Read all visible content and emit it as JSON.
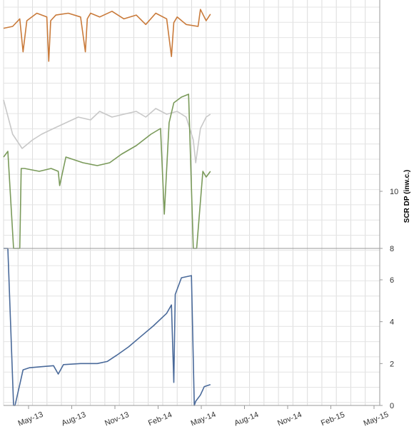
{
  "chart_data": {
    "type": "line",
    "title": "",
    "xlabel": "",
    "x_ticks": [
      "May-13",
      "Aug-13",
      "Nov-13",
      "Feb-14",
      "May-14",
      "Aug-14",
      "Nov-14",
      "Feb-15",
      "May-15"
    ],
    "x_range": [
      "2013-04",
      "2015-06"
    ],
    "grid": true,
    "legend": "none",
    "panels": [
      {
        "name": "top",
        "y_ticks": [],
        "series": [
          {
            "color": "#c97a3a",
            "x": [
              "2013-04-01",
              "2013-04-20",
              "2013-05-05",
              "2013-05-12",
              "2013-05-20",
              "2013-06-10",
              "2013-07-01",
              "2013-07-05",
              "2013-07-09",
              "2013-07-20",
              "2013-08-15",
              "2013-09-10",
              "2013-09-20",
              "2013-09-24",
              "2013-10-01",
              "2013-10-20",
              "2013-11-15",
              "2013-12-10",
              "2014-01-05",
              "2014-01-25",
              "2014-02-15",
              "2014-03-10",
              "2014-03-20",
              "2014-03-25",
              "2014-04-01",
              "2014-04-20",
              "2014-05-15",
              "2014-05-20",
              "2014-06-01",
              "2014-06-10"
            ],
            "values": [
              0.7,
              0.72,
              0.8,
              0.45,
              0.78,
              0.86,
              0.82,
              0.35,
              0.78,
              0.84,
              0.86,
              0.82,
              0.45,
              0.8,
              0.86,
              0.82,
              0.88,
              0.8,
              0.84,
              0.74,
              0.86,
              0.8,
              0.4,
              0.76,
              0.82,
              0.74,
              0.72,
              0.9,
              0.78,
              0.85
            ]
          }
        ]
      },
      {
        "name": "middle",
        "ylabel": "SCR DP (inw.c.)",
        "y_ticks": [
          "8",
          "10"
        ],
        "ylim": [
          8,
          13.4
        ],
        "series": [
          {
            "color": "#c8c8c8",
            "x": [
              "2013-04-01",
              "2013-04-20",
              "2013-05-10",
              "2013-06-01",
              "2013-06-20",
              "2013-07-15",
              "2013-08-10",
              "2013-09-05",
              "2013-10-01",
              "2013-10-20",
              "2013-11-15",
              "2013-12-10",
              "2014-01-05",
              "2014-01-25",
              "2014-02-15",
              "2014-03-10",
              "2014-04-01",
              "2014-04-20",
              "2014-05-05",
              "2014-05-10",
              "2014-05-20",
              "2014-06-01",
              "2014-06-10"
            ],
            "values": [
              13.2,
              12.0,
              11.5,
              11.8,
              12.0,
              12.2,
              12.4,
              12.6,
              12.5,
              12.8,
              12.6,
              12.7,
              12.8,
              12.6,
              12.9,
              12.7,
              12.8,
              12.6,
              11.8,
              11.0,
              12.2,
              12.6,
              12.7
            ]
          },
          {
            "color": "#7a9a5a",
            "x": [
              "2013-04-01",
              "2013-04-10",
              "2013-04-22",
              "2013-05-05",
              "2013-05-08",
              "2013-05-15",
              "2013-06-15",
              "2013-07-10",
              "2013-07-25",
              "2013-07-28",
              "2013-08-10",
              "2013-09-15",
              "2013-10-15",
              "2013-11-10",
              "2013-12-05",
              "2014-01-05",
              "2014-02-05",
              "2014-02-25",
              "2014-03-05",
              "2014-03-15",
              "2014-03-25",
              "2014-04-10",
              "2014-04-25",
              "2014-05-05",
              "2014-05-12",
              "2014-05-25",
              "2014-06-01",
              "2014-06-10"
            ],
            "values": [
              11.2,
              11.4,
              8.0,
              8.0,
              10.8,
              10.8,
              10.7,
              10.8,
              10.7,
              10.2,
              11.2,
              11.0,
              10.9,
              11.0,
              11.3,
              11.6,
              12.0,
              12.2,
              9.2,
              12.4,
              13.1,
              13.3,
              13.4,
              8.0,
              8.0,
              10.7,
              10.5,
              10.7
            ]
          }
        ]
      },
      {
        "name": "bottom",
        "y_ticks": [
          "0",
          "2",
          "4",
          "6"
        ],
        "ylim": [
          0,
          7.5
        ],
        "series": [
          {
            "color": "#4a6a9a",
            "x": [
              "2013-04-01",
              "2013-04-10",
              "2013-04-22",
              "2013-04-25",
              "2013-05-05",
              "2013-05-12",
              "2013-05-25",
              "2013-06-20",
              "2013-07-15",
              "2013-07-25",
              "2013-08-05",
              "2013-09-10",
              "2013-10-15",
              "2013-11-05",
              "2013-11-25",
              "2013-12-20",
              "2014-01-15",
              "2014-02-10",
              "2014-03-10",
              "2014-03-20",
              "2014-03-25",
              "2014-03-28",
              "2014-04-10",
              "2014-05-01",
              "2014-05-07",
              "2014-05-10",
              "2014-05-20",
              "2014-05-28",
              "2014-06-10"
            ],
            "values": [
              8.6,
              8.5,
              0.0,
              0.0,
              1.0,
              1.7,
              1.8,
              1.85,
              1.9,
              1.5,
              1.95,
              2.0,
              2.0,
              2.1,
              2.4,
              2.8,
              3.3,
              3.8,
              4.4,
              4.8,
              1.1,
              5.3,
              6.1,
              6.2,
              0.0,
              0.2,
              0.5,
              0.9,
              1.0
            ]
          }
        ]
      }
    ]
  }
}
